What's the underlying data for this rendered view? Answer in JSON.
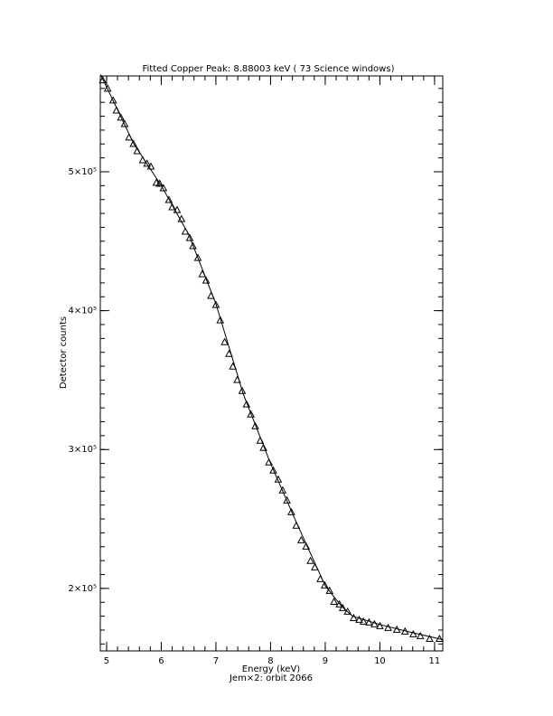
{
  "chart_data": {
    "type": "scatter",
    "title": "Fitted Copper Peak:      8.88003 keV (      73 Science windows)",
    "x_label": "Energy (keV)",
    "subtitle": "Jem×2: orbit 2066",
    "y_label": "Detector counts",
    "xlim": [
      4.885,
      11.15
    ],
    "ylim": [
      155000,
      569000
    ],
    "xticks": [
      5,
      6,
      7,
      8,
      9,
      10,
      11
    ],
    "yticks": [
      {
        "value": 200000,
        "label": "2×10⁵"
      },
      {
        "value": 300000,
        "label": "3×10⁵"
      },
      {
        "value": 400000,
        "label": "4×10⁵"
      },
      {
        "value": 500000,
        "label": "5×10⁵"
      }
    ],
    "color": "#000000",
    "series": [
      {
        "marker": "triangle",
        "x": [
          4.93,
          5.02,
          5.12,
          5.18,
          5.26,
          5.33,
          5.41,
          5.49,
          5.56,
          5.66,
          5.74,
          5.81,
          5.91,
          5.97,
          6.04,
          6.14,
          6.2,
          6.29,
          6.37,
          6.44,
          6.52,
          6.58,
          6.67,
          6.75,
          6.82,
          6.91,
          7.0,
          7.08,
          7.16,
          7.24,
          7.31,
          7.39,
          7.48,
          7.56,
          7.64,
          7.72,
          7.81,
          7.87,
          7.97,
          8.05,
          8.14,
          8.22,
          8.3,
          8.38,
          8.47,
          8.56,
          8.65,
          8.73,
          8.81,
          8.91,
          8.99,
          9.08,
          9.16,
          9.26,
          9.32,
          9.41,
          9.52,
          9.62,
          9.7,
          9.8,
          9.9,
          10.0,
          10.15,
          10.31,
          10.46,
          10.61,
          10.74,
          10.91,
          11.09
        ],
        "y": [
          566000,
          560000,
          551500,
          544300,
          539100,
          534500,
          524800,
          520200,
          515000,
          508500,
          505900,
          503900,
          492200,
          491500,
          488300,
          479800,
          474600,
          472600,
          466100,
          457000,
          452400,
          446600,
          438100,
          426400,
          421800,
          410700,
          404200,
          393200,
          377500,
          369000,
          359900,
          350200,
          342300,
          332600,
          325400,
          316900,
          306500,
          301300,
          290900,
          285000,
          278500,
          270700,
          263500,
          255000,
          245300,
          234800,
          230300,
          219900,
          215300,
          206800,
          202300,
          198400,
          190500,
          188600,
          186000,
          183400,
          178800,
          177500,
          176200,
          175600,
          174300,
          173000,
          171700,
          170400,
          169100,
          167100,
          165800,
          163800,
          163800
        ]
      },
      {
        "marker": "none",
        "x": [
          4.89,
          5.0,
          5.5,
          6.0,
          6.5,
          7.0,
          7.5,
          8.0,
          8.5,
          9.0,
          9.3,
          9.5,
          10.0,
          10.5,
          11.0,
          11.15
        ],
        "y": [
          570000,
          561000,
          520000,
          490000,
          455000,
          405000,
          340000,
          290000,
          245000,
          202000,
          187000,
          180000,
          174000,
          169000,
          164500,
          163000
        ]
      }
    ]
  }
}
